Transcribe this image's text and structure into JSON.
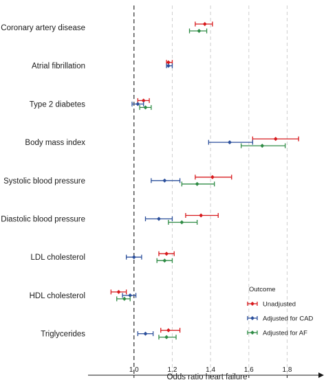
{
  "chart_data": {
    "type": "forest",
    "xlabel": "Odds ratio heart failure",
    "xlim": [
      0.76,
      1.96
    ],
    "x_ticks": [
      1.0,
      1.2,
      1.4,
      1.6,
      1.8
    ],
    "x_tick_labels": [
      "1.0",
      "1.2",
      "1.4",
      "1.6",
      "1.8"
    ],
    "reference_line": 1.0,
    "grid_lines": [
      1.2,
      1.4,
      1.6,
      1.8
    ],
    "categories": [
      "Coronary artery disease",
      "Atrial fibrillation",
      "Type 2 diabetes",
      "Body mass index",
      "Systolic blood pressure",
      "Diastolic blood pressure",
      "LDL cholesterol",
      "HDL cholesterol",
      "Triglycerides"
    ],
    "legend": {
      "title": "Outcome",
      "position": "bottom-right"
    },
    "series": [
      {
        "name": "Unadjusted",
        "color": "#d7191c",
        "points": [
          {
            "est": 1.37,
            "lo": 1.32,
            "hi": 1.41
          },
          {
            "est": 1.18,
            "lo": 1.17,
            "hi": 1.2
          },
          {
            "est": 1.05,
            "lo": 1.02,
            "hi": 1.08
          },
          {
            "est": 1.74,
            "lo": 1.62,
            "hi": 1.86
          },
          {
            "est": 1.41,
            "lo": 1.32,
            "hi": 1.51
          },
          {
            "est": 1.35,
            "lo": 1.27,
            "hi": 1.44
          },
          {
            "est": 1.17,
            "lo": 1.13,
            "hi": 1.21
          },
          {
            "est": 0.92,
            "lo": 0.88,
            "hi": 0.96
          },
          {
            "est": 1.18,
            "lo": 1.14,
            "hi": 1.24
          }
        ]
      },
      {
        "name": "Adjusted for CAD",
        "color": "#2b4f9b",
        "points": [
          null,
          {
            "est": 1.18,
            "lo": 1.17,
            "hi": 1.2
          },
          {
            "est": 1.02,
            "lo": 0.99,
            "hi": 1.05
          },
          {
            "est": 1.5,
            "lo": 1.39,
            "hi": 1.62
          },
          {
            "est": 1.16,
            "lo": 1.09,
            "hi": 1.24
          },
          {
            "est": 1.13,
            "lo": 1.06,
            "hi": 1.2
          },
          {
            "est": 1.0,
            "lo": 0.96,
            "hi": 1.04
          },
          {
            "est": 0.98,
            "lo": 0.94,
            "hi": 1.01
          },
          {
            "est": 1.06,
            "lo": 1.02,
            "hi": 1.1
          }
        ]
      },
      {
        "name": "Adjusted for AF",
        "color": "#2e8b44",
        "points": [
          {
            "est": 1.34,
            "lo": 1.29,
            "hi": 1.38
          },
          null,
          {
            "est": 1.06,
            "lo": 1.03,
            "hi": 1.09
          },
          {
            "est": 1.67,
            "lo": 1.56,
            "hi": 1.79
          },
          {
            "est": 1.33,
            "lo": 1.25,
            "hi": 1.42
          },
          {
            "est": 1.25,
            "lo": 1.18,
            "hi": 1.33
          },
          {
            "est": 1.16,
            "lo": 1.12,
            "hi": 1.2
          },
          {
            "est": 0.95,
            "lo": 0.91,
            "hi": 0.98
          },
          {
            "est": 1.17,
            "lo": 1.13,
            "hi": 1.22
          }
        ]
      }
    ]
  }
}
